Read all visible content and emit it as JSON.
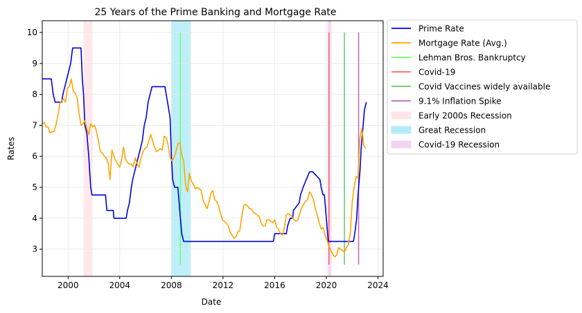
{
  "chart_data": {
    "type": "line",
    "title": "25 Years of the Prime Banking and Mortgage Rate",
    "xlabel": "Date",
    "ylabel": "Rates",
    "xlim": [
      1998.0,
      2024.4
    ],
    "ylim": [
      2.12,
      10.38
    ],
    "grid": true,
    "legend_position": "outside-top-right",
    "x_ticks": [
      2000,
      2004,
      2008,
      2012,
      2016,
      2020,
      2024
    ],
    "x_tick_labels": [
      "2000",
      "2004",
      "2008",
      "2012",
      "2016",
      "2020",
      "2024"
    ],
    "y_ticks": [
      3,
      4,
      5,
      6,
      7,
      8,
      9,
      10
    ],
    "y_tick_labels": [
      "3",
      "4",
      "5",
      "6",
      "7",
      "8",
      "9",
      "10"
    ],
    "series": [
      {
        "name": "Prime Rate",
        "color": "#0000e0",
        "x": [
          1998.0,
          1998.7,
          1998.85,
          1999.0,
          1999.5,
          1999.6,
          1999.75,
          1999.9,
          2000.05,
          2000.2,
          2000.35,
          2000.45,
          2001.0,
          2001.1,
          2001.2,
          2001.3,
          2001.45,
          2001.6,
          2001.75,
          2001.85,
          2002.0,
          2002.05,
          2002.9,
          2003.0,
          2003.5,
          2003.55,
          2004.5,
          2004.6,
          2004.75,
          2004.9,
          2005.0,
          2005.15,
          2005.3,
          2005.45,
          2005.6,
          2005.75,
          2005.9,
          2006.05,
          2006.2,
          2006.35,
          2006.5,
          2007.5,
          2007.7,
          2007.8,
          2007.9,
          2008.0,
          2008.1,
          2008.25,
          2008.35,
          2008.5,
          2008.7,
          2008.8,
          2008.95,
          2015.9,
          2016.0,
          2016.9,
          2017.0,
          2017.2,
          2017.4,
          2017.45,
          2017.9,
          2018.0,
          2018.2,
          2018.45,
          2018.7,
          2018.95,
          2019.5,
          2019.6,
          2019.75,
          2019.85,
          2020.15,
          2020.25,
          2022.1,
          2022.2,
          2022.35,
          2022.45,
          2022.6,
          2022.7,
          2022.85,
          2022.95,
          2023.1
        ],
        "values": [
          8.5,
          8.5,
          8.0,
          7.75,
          7.75,
          8.0,
          8.25,
          8.5,
          8.75,
          9.0,
          9.5,
          9.5,
          9.5,
          8.5,
          8.0,
          7.0,
          6.75,
          6.0,
          5.0,
          4.75,
          4.75,
          4.75,
          4.75,
          4.25,
          4.25,
          4.0,
          4.0,
          4.25,
          4.5,
          5.0,
          5.25,
          5.5,
          5.75,
          6.0,
          6.25,
          6.5,
          7.0,
          7.25,
          7.75,
          8.0,
          8.25,
          8.25,
          7.75,
          7.5,
          7.25,
          6.0,
          5.25,
          5.0,
          5.0,
          5.0,
          4.0,
          3.5,
          3.25,
          3.25,
          3.5,
          3.5,
          3.75,
          4.0,
          4.0,
          4.25,
          4.5,
          4.75,
          5.0,
          5.25,
          5.5,
          5.5,
          5.25,
          5.0,
          4.75,
          4.75,
          3.25,
          3.25,
          3.25,
          3.5,
          4.0,
          4.75,
          5.5,
          6.25,
          7.0,
          7.5,
          7.75
        ]
      },
      {
        "name": "Mortgage Rate (Avg.)",
        "color": "#ffa500",
        "x": [
          1998.0,
          1998.15,
          1998.3,
          1998.45,
          1998.6,
          1998.75,
          1998.9,
          1999.05,
          1999.2,
          1999.35,
          1999.5,
          1999.65,
          1999.8,
          1999.95,
          2000.1,
          2000.25,
          2000.4,
          2000.55,
          2000.7,
          2000.85,
          2001.0,
          2001.15,
          2001.3,
          2001.45,
          2001.6,
          2001.75,
          2001.9,
          2002.05,
          2002.2,
          2002.35,
          2002.5,
          2002.65,
          2002.8,
          2002.95,
          2003.1,
          2003.25,
          2003.4,
          2003.55,
          2003.7,
          2003.85,
          2004.0,
          2004.15,
          2004.3,
          2004.45,
          2004.6,
          2004.75,
          2004.9,
          2005.05,
          2005.2,
          2005.35,
          2005.5,
          2005.65,
          2005.8,
          2005.95,
          2006.1,
          2006.25,
          2006.4,
          2006.55,
          2006.7,
          2006.85,
          2007.0,
          2007.15,
          2007.3,
          2007.45,
          2007.6,
          2007.75,
          2007.9,
          2008.05,
          2008.2,
          2008.35,
          2008.5,
          2008.65,
          2008.8,
          2008.95,
          2009.1,
          2009.25,
          2009.4,
          2009.55,
          2009.7,
          2009.85,
          2010.0,
          2010.15,
          2010.3,
          2010.45,
          2010.6,
          2010.75,
          2010.9,
          2011.05,
          2011.2,
          2011.35,
          2011.5,
          2011.65,
          2011.8,
          2011.95,
          2012.1,
          2012.25,
          2012.4,
          2012.55,
          2012.7,
          2012.85,
          2013.0,
          2013.15,
          2013.3,
          2013.45,
          2013.6,
          2013.75,
          2013.9,
          2014.05,
          2014.2,
          2014.35,
          2014.5,
          2014.65,
          2014.8,
          2014.95,
          2015.1,
          2015.25,
          2015.4,
          2015.55,
          2015.7,
          2015.85,
          2016.0,
          2016.15,
          2016.3,
          2016.45,
          2016.6,
          2016.75,
          2016.9,
          2017.05,
          2017.2,
          2017.35,
          2017.5,
          2017.65,
          2017.8,
          2017.95,
          2018.1,
          2018.25,
          2018.4,
          2018.55,
          2018.7,
          2018.85,
          2019.0,
          2019.15,
          2019.3,
          2019.45,
          2019.6,
          2019.75,
          2019.9,
          2020.05,
          2020.2,
          2020.35,
          2020.5,
          2020.65,
          2020.8,
          2020.95,
          2021.1,
          2021.25,
          2021.4,
          2021.55,
          2021.7,
          2021.85,
          2022.0,
          2022.15,
          2022.3,
          2022.45,
          2022.6,
          2022.75,
          2022.9,
          2023.05
        ],
        "values": [
          7.05,
          7.1,
          6.95,
          6.95,
          6.75,
          6.8,
          6.8,
          7.0,
          7.3,
          7.7,
          7.8,
          7.85,
          7.75,
          8.2,
          8.25,
          8.5,
          8.1,
          8.05,
          7.9,
          7.4,
          7.0,
          7.05,
          7.15,
          6.9,
          6.7,
          7.05,
          6.95,
          7.0,
          6.8,
          6.5,
          6.15,
          6.1,
          6.0,
          5.95,
          5.8,
          5.25,
          6.2,
          6.0,
          5.85,
          5.75,
          5.65,
          5.9,
          6.3,
          5.9,
          5.8,
          5.75,
          5.75,
          5.65,
          5.95,
          5.75,
          5.65,
          5.95,
          6.15,
          6.25,
          6.3,
          6.5,
          6.7,
          6.5,
          6.3,
          6.15,
          6.2,
          6.25,
          6.2,
          6.65,
          6.6,
          6.35,
          5.95,
          5.85,
          5.95,
          6.15,
          6.4,
          6.45,
          6.05,
          5.85,
          5.05,
          4.85,
          5.45,
          5.2,
          5.1,
          4.95,
          5.0,
          4.95,
          4.9,
          4.6,
          4.45,
          4.3,
          4.5,
          4.8,
          4.9,
          4.6,
          4.55,
          4.4,
          4.15,
          3.95,
          3.9,
          3.85,
          3.75,
          3.55,
          3.45,
          3.35,
          3.4,
          3.55,
          3.6,
          4.05,
          4.4,
          4.45,
          4.4,
          4.3,
          4.3,
          4.2,
          4.15,
          4.1,
          4.05,
          3.85,
          3.75,
          3.75,
          3.95,
          3.95,
          3.9,
          3.85,
          3.95,
          3.7,
          3.65,
          3.5,
          3.45,
          3.7,
          4.1,
          4.15,
          4.1,
          4.05,
          3.95,
          3.9,
          3.95,
          4.15,
          4.35,
          4.45,
          4.55,
          4.6,
          4.85,
          4.75,
          4.6,
          4.3,
          4.1,
          3.85,
          3.65,
          3.7,
          3.45,
          3.3,
          3.1,
          2.95,
          2.85,
          2.75,
          2.8,
          3.05,
          3.0,
          2.95,
          2.9,
          3.05,
          3.15,
          3.5,
          4.5,
          5.0,
          5.35,
          5.3,
          6.6,
          6.9,
          6.35,
          6.25
        ]
      }
    ],
    "events": [
      {
        "name": "Lehman Bros. Bankruptcy",
        "x": 2008.7,
        "color": "#66ff66",
        "y_range": [
          2.5,
          10.0
        ]
      },
      {
        "name": "Covid-19",
        "x": 2020.2,
        "color": "#ff6666",
        "y_range": [
          2.5,
          10.0
        ]
      },
      {
        "name": "Covid Vaccines widely available",
        "x": 2021.4,
        "color": "#66c466",
        "y_range": [
          2.5,
          10.0
        ]
      },
      {
        "name": "9.1% Inflation Spike",
        "x": 2022.5,
        "color": "#bb66bb",
        "y_range": [
          2.5,
          10.0
        ]
      }
    ],
    "spans": [
      {
        "name": "Early 2000s Recession",
        "x_range": [
          2001.2,
          2001.9
        ],
        "color": "#ffe4e8"
      },
      {
        "name": "Great Recession",
        "x_range": [
          2008.0,
          2009.5
        ],
        "color": "#b3ecf8"
      },
      {
        "name": "Covid-19 Recession",
        "x_range": [
          2020.1,
          2020.4
        ],
        "color": "#f3d4f0"
      }
    ]
  }
}
